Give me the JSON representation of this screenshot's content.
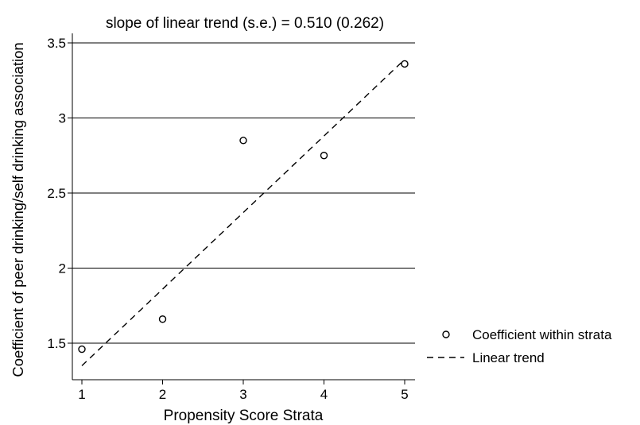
{
  "chart_data": {
    "type": "scatter",
    "title": "slope of linear trend (s.e.) = 0.510 (0.262)",
    "xlabel": "Propensity Score Strata",
    "ylabel": "Coefficient of peer drinking/self drinking association",
    "xlim": [
      1,
      5
    ],
    "ylim": [
      1.3,
      3.55
    ],
    "x_ticks": [
      1,
      2,
      3,
      4,
      5
    ],
    "y_ticks": [
      1.5,
      2,
      2.5,
      3,
      3.5
    ],
    "x_tick_labels": [
      "1",
      "2",
      "3",
      "4",
      "5"
    ],
    "y_tick_labels": [
      "1.5",
      "2",
      "2.5",
      "3",
      "3.5"
    ],
    "grid": "horizontal",
    "legend_position": "right",
    "series": [
      {
        "name": "Coefficient within strata",
        "kind": "points",
        "x": [
          1,
          2,
          3,
          4,
          5
        ],
        "y": [
          1.46,
          1.66,
          2.85,
          2.75,
          3.36
        ]
      },
      {
        "name": "Linear trend",
        "kind": "dashed-line",
        "x": [
          1,
          5
        ],
        "y": [
          1.35,
          3.39
        ]
      }
    ]
  }
}
